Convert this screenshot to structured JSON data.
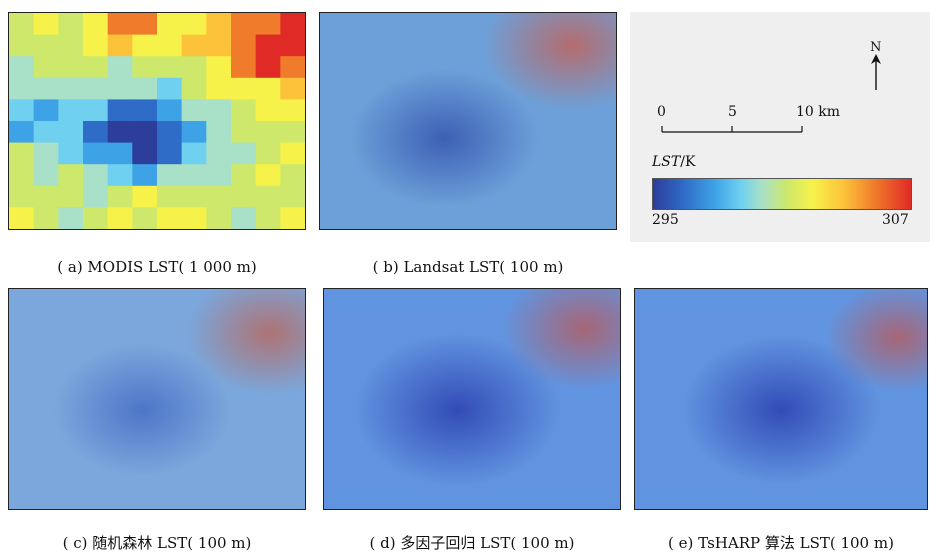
{
  "panels": [
    {
      "id": "a",
      "caption": "( a) MODIS LST( 1 000 m)"
    },
    {
      "id": "b",
      "caption": "( b) Landsat LST( 100 m)"
    },
    {
      "id": "c",
      "caption": "( c) 随机森林 LST( 100 m)"
    },
    {
      "id": "d",
      "caption": "( d) 多因子回归 LST( 100 m)"
    },
    {
      "id": "e",
      "caption": "( e) TsHARP 算法 LST( 100 m)"
    }
  ],
  "legend": {
    "north_label": "N",
    "scale_ticks": [
      "0",
      "5",
      "10 km"
    ],
    "scale_values_km": [
      0,
      5,
      10
    ],
    "title_italic": "LST",
    "title_unit": "/K",
    "min_label": "295",
    "max_label": "307",
    "value_range": [
      295,
      307
    ],
    "color_ramp": [
      "#2c3d9a",
      "#2f6cc8",
      "#3ea3e6",
      "#6fd0f0",
      "#a8e0c8",
      "#cde86a",
      "#f7f24a",
      "#fcc23a",
      "#f07b2a",
      "#e02a26"
    ]
  }
}
